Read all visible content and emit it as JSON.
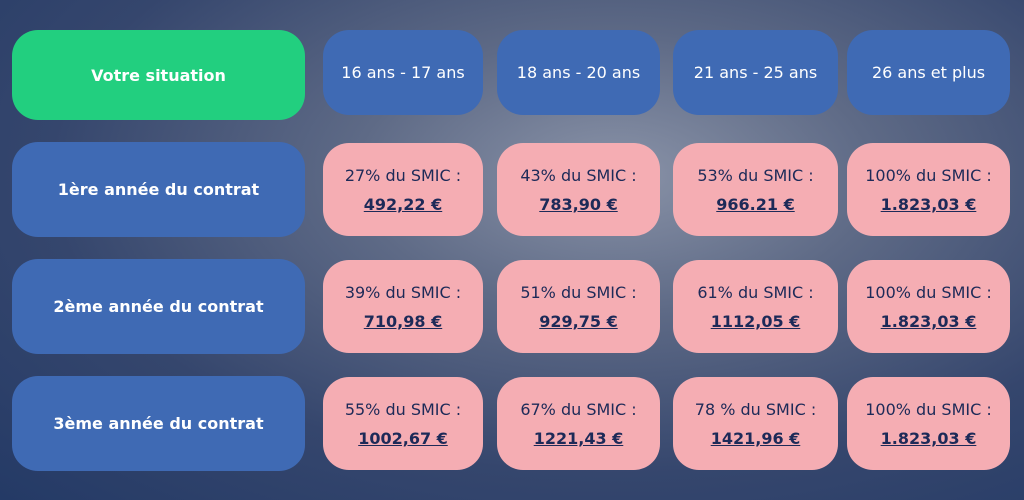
{
  "table": {
    "header": [
      "Votre situation",
      "16 ans - 17 ans",
      "18 ans - 20 ans",
      "21 ans - 25 ans",
      "26 ans et plus"
    ],
    "rows": [
      {
        "label": "1ère année du contrat",
        "cells": [
          {
            "rate": "27% du SMIC :",
            "amount": "492,22 €"
          },
          {
            "rate": "43% du SMIC :",
            "amount": "783,90 €"
          },
          {
            "rate": "53% du SMIC :",
            "amount": "966.21 €"
          },
          {
            "rate": "100% du SMIC :",
            "amount": "1.823,03 €"
          }
        ]
      },
      {
        "label": "2ème année du contrat",
        "cells": [
          {
            "rate": "39% du SMIC :",
            "amount": "710,98 €"
          },
          {
            "rate": "51% du SMIC :",
            "amount": "929,75 €"
          },
          {
            "rate": "61% du SMIC :",
            "amount": "1112,05 €"
          },
          {
            "rate": "100% du SMIC :",
            "amount": "1.823,03 €"
          }
        ]
      },
      {
        "label": "3ème année du contrat",
        "cells": [
          {
            "rate": "55% du SMIC :",
            "amount": "1002,67 €"
          },
          {
            "rate": "67% du SMIC :",
            "amount": "1221,43 €"
          },
          {
            "rate": "78 % du SMIC :",
            "amount": "1421,96 €"
          },
          {
            "rate": "100% du SMIC :",
            "amount": "1.823,03 €"
          }
        ]
      }
    ]
  }
}
